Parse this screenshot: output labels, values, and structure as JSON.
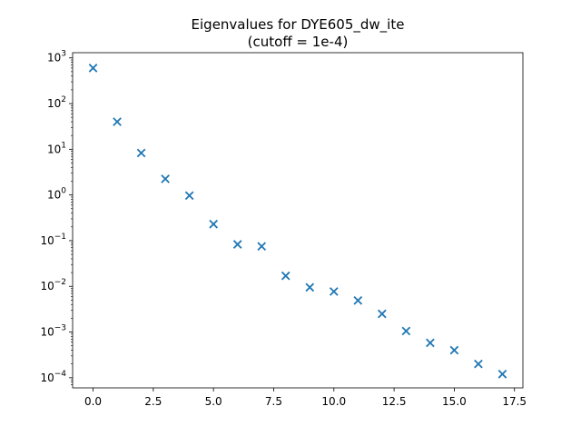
{
  "chart_data": {
    "type": "scatter",
    "title": "Eigenvalues for DYE605_dw_ite",
    "subtitle": "(cutoff = 1e-4)",
    "xlabel": "",
    "ylabel": "",
    "yscale": "log",
    "xlim": [
      -0.85,
      17.85
    ],
    "ylim": [
      6e-05,
      1300
    ],
    "grid": false,
    "marker": "x",
    "color": "#1f77b4",
    "x_ticks": [
      "0.0",
      "2.5",
      "5.0",
      "7.5",
      "10.0",
      "12.5",
      "15.0",
      "17.5"
    ],
    "y_tick_exponents": [
      "3",
      "2",
      "1",
      "0",
      "−1",
      "−2",
      "−3",
      "−4"
    ],
    "series": [
      {
        "x": [
          0,
          1,
          2,
          3,
          4,
          5,
          6,
          7,
          8,
          9,
          10,
          11,
          12,
          13,
          14,
          15,
          16,
          17
        ],
        "y": [
          600,
          40,
          8.3,
          2.25,
          0.97,
          0.23,
          0.083,
          0.075,
          0.017,
          0.0095,
          0.0077,
          0.0049,
          0.0025,
          0.00105,
          0.00058,
          0.0004,
          0.0002,
          0.00012
        ]
      }
    ]
  }
}
